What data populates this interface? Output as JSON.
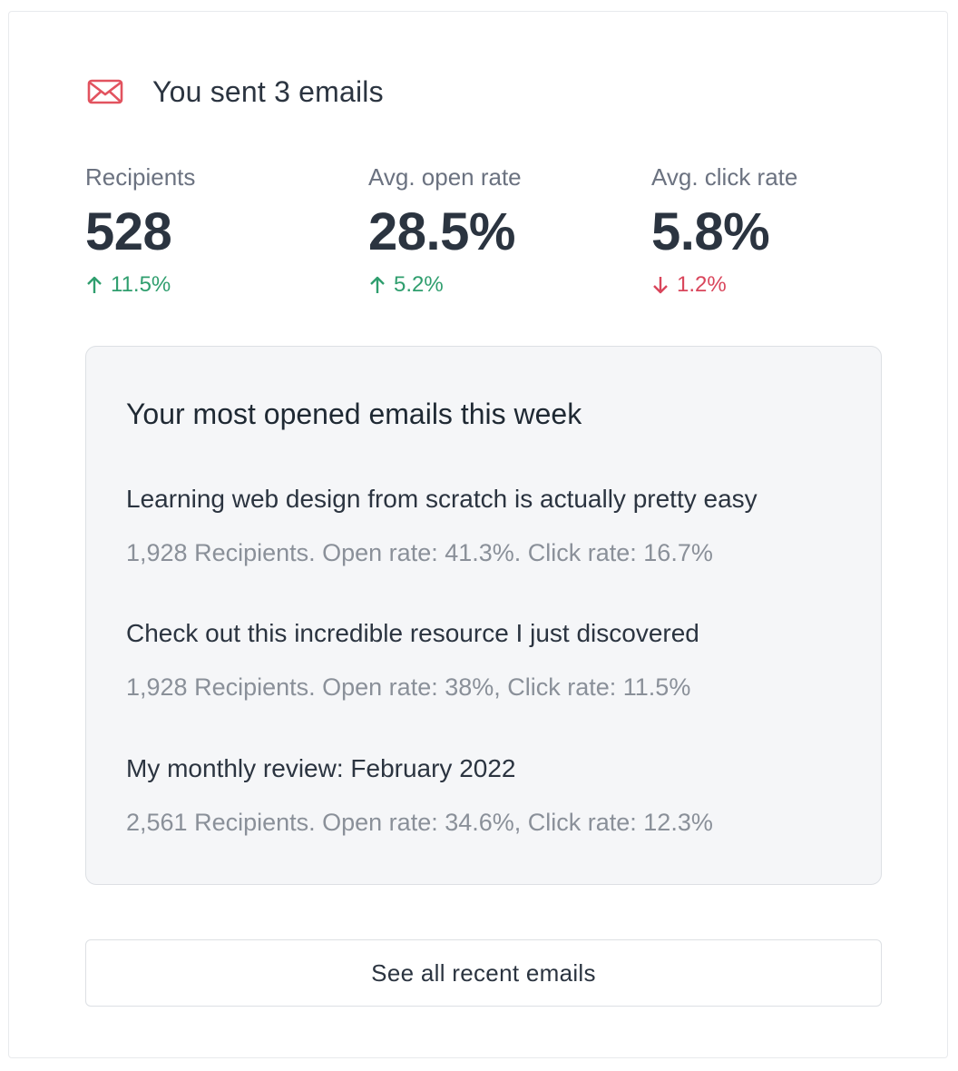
{
  "header": {
    "icon": "mail-icon",
    "title": "You sent 3 emails",
    "icon_color": "#e2535f"
  },
  "stats": [
    {
      "label": "Recipients",
      "value": "528",
      "change": "11.5%",
      "direction": "up"
    },
    {
      "label": "Avg. open rate",
      "value": "28.5%",
      "change": "5.2%",
      "direction": "up"
    },
    {
      "label": "Avg. click rate",
      "value": "5.8%",
      "change": "1.2%",
      "direction": "down"
    }
  ],
  "colors": {
    "positive": "#2f9e6e",
    "negative": "#d9455b"
  },
  "most_opened": {
    "title": "Your most opened emails this week",
    "emails": [
      {
        "subject": "Learning web design from scratch is actually pretty easy",
        "stats": "1,928 Recipients. Open rate: 41.3%. Click rate: 16.7%"
      },
      {
        "subject": "Check out this incredible resource I just discovered",
        "stats": "1,928 Recipients. Open rate: 38%, Click rate: 11.5%"
      },
      {
        "subject": "My monthly review: February 2022",
        "stats": "2,561 Recipients. Open rate: 34.6%, Click rate: 12.3%"
      }
    ]
  },
  "footer": {
    "see_all_label": "See all recent emails"
  }
}
